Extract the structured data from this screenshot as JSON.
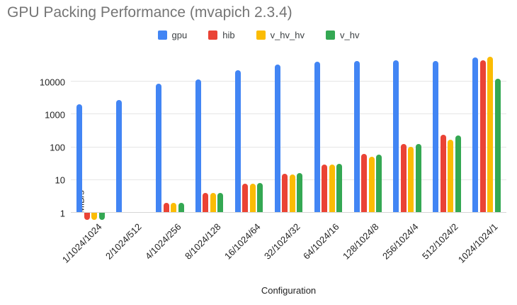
{
  "title": "GPU Packing Performance (mvapich 2.3.4)",
  "chart_data": {
    "type": "bar",
    "title": "GPU Packing Performance (mvapich 2.3.4)",
    "xlabel": "Configuration",
    "ylabel": "MiB/s",
    "y_scale": "log",
    "ylim": [
      1,
      45000
    ],
    "yticks": [
      1,
      10,
      100,
      1000,
      10000
    ],
    "grid": true,
    "legend_position": "top",
    "categories": [
      "1/1024/1024",
      "2/1024/512",
      "4/1024/256",
      "8/1024/128",
      "16/1024/64",
      "32/1024/32",
      "64/1024/16",
      "128/1024/8",
      "256/1024/4",
      "512/1024/2",
      "1024/1024/1"
    ],
    "series": [
      {
        "name": "gpu",
        "color": "#4285F4",
        "values": [
          2100,
          2700,
          8500,
          12000,
          22000,
          33000,
          40000,
          42000,
          45000,
          42000,
          55000
        ]
      },
      {
        "name": "hib",
        "color": "#EA4335",
        "values": [
          0.6,
          null,
          2,
          4,
          7.8,
          15.5,
          30,
          62,
          125,
          240,
          45000
        ]
      },
      {
        "name": "v_hv_hv",
        "color": "#FBBC04",
        "values": [
          0.6,
          null,
          2,
          4,
          7.6,
          14.8,
          29,
          51,
          102,
          167,
          57000
        ]
      },
      {
        "name": "v_hv",
        "color": "#34A853",
        "values": [
          0.6,
          null,
          2,
          4,
          8,
          16,
          31,
          59,
          125,
          230,
          12500
        ]
      }
    ]
  },
  "colors": {
    "title_text": "#757575",
    "axis_text": "#222222",
    "gridline": "#e6e6e6"
  }
}
